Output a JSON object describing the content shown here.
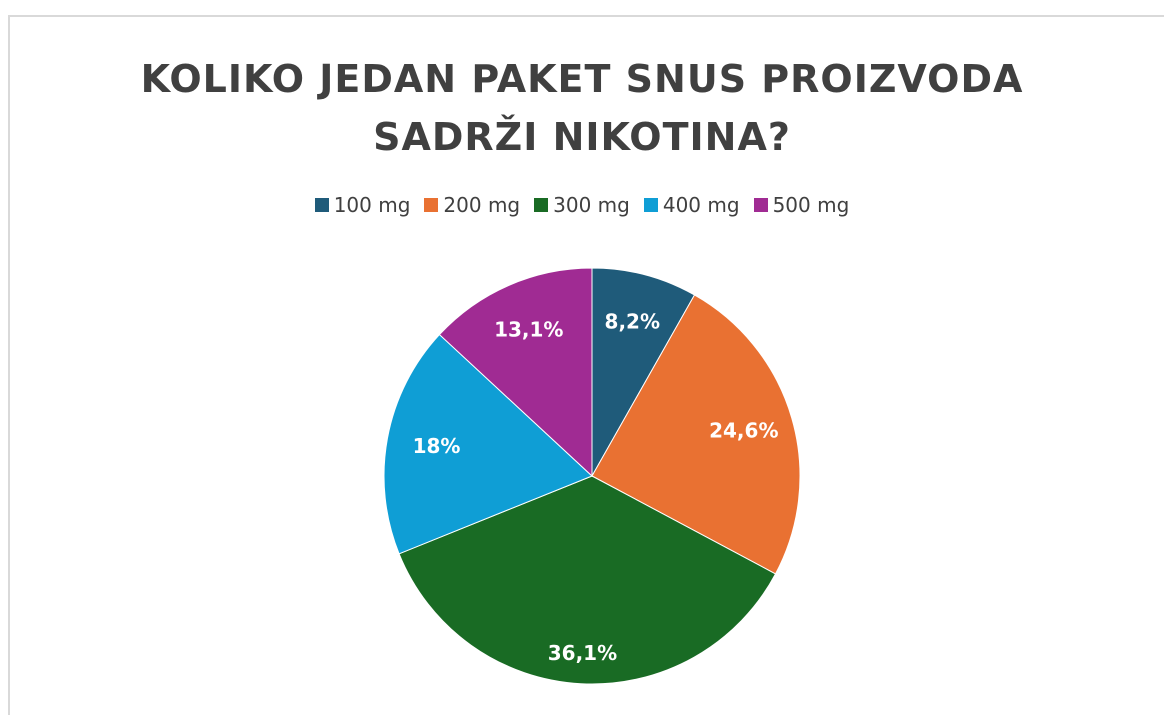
{
  "chart_data": {
    "type": "pie",
    "title": "KOLIKO JEDAN PAKET SNUS PROIZVODA SADRŽI NIKOTINA?",
    "categories": [
      "100 mg",
      "200 mg",
      "300 mg",
      "400 mg",
      "500 mg"
    ],
    "values": [
      8.2,
      24.6,
      36.1,
      18,
      13.1
    ],
    "value_labels": [
      "8,2%",
      "24,6%",
      "36,1%",
      "18%",
      "13,1%"
    ],
    "colors": [
      "#1f5b7a",
      "#e97132",
      "#196b24",
      "#0f9ed5",
      "#a02b93"
    ],
    "legend": "top"
  }
}
